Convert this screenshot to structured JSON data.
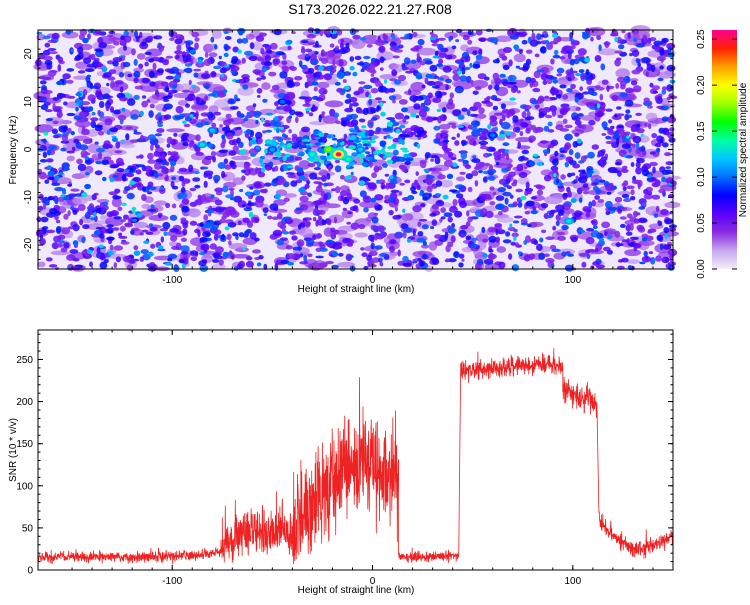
{
  "title": "S173.2026.022.21.27.R08",
  "chart_data": [
    {
      "type": "heatmap",
      "title": "",
      "xlabel": "Height of straight line (km)",
      "ylabel": "Frequency (Hz)",
      "xlim": [
        -167,
        150
      ],
      "ylim": [
        -25,
        25
      ],
      "x_ticks": [
        "-100",
        "0",
        "100"
      ],
      "y_ticks": [
        "-20",
        "-10",
        "0",
        "10",
        "20"
      ],
      "colorbar": {
        "label": "Normalized spectral amplitude",
        "range": [
          0,
          0.26
        ],
        "ticks": [
          "0.00",
          "0.05",
          "0.10",
          "0.15",
          "0.20",
          "0.25"
        ],
        "colors": [
          "#f4eefc",
          "#c8a8f0",
          "#8a2be2",
          "#5a00ff",
          "#0000ff",
          "#0070ff",
          "#00c8ff",
          "#00ffa0",
          "#00ff00",
          "#a0ff00",
          "#ffff00",
          "#ffa000",
          "#ff2000",
          "#ff0090"
        ]
      },
      "peak": {
        "x": -17,
        "y": -1,
        "value": 0.26
      },
      "features": [
        {
          "x": -30,
          "y": -1,
          "value": 0.14
        },
        {
          "x": -22,
          "y": 0,
          "value": 0.18
        },
        {
          "x": -12,
          "y": -2,
          "value": 0.14
        },
        {
          "x": -6,
          "y": 0,
          "value": 0.12
        },
        {
          "x": -85,
          "y": 1,
          "value": 0.13
        },
        {
          "x": -80,
          "y": 4,
          "value": 0.12
        },
        {
          "x": -50,
          "y": 0,
          "value": 0.11
        },
        {
          "x": 98,
          "y": -15,
          "value": 0.13
        },
        {
          "x": -45,
          "y": 10,
          "value": 0.1
        },
        {
          "x": 60,
          "y": 3,
          "value": 0.1
        }
      ]
    },
    {
      "type": "line",
      "title": "",
      "xlabel": "Height of straight line (km)",
      "ylabel": "SNR (10 * v/v)",
      "xlim": [
        -167,
        150
      ],
      "ylim": [
        0,
        285
      ],
      "x_ticks": [
        "-100",
        "0",
        "100"
      ],
      "y_ticks": [
        "0",
        "50",
        "100",
        "150",
        "200",
        "250"
      ],
      "series": [
        {
          "name": "SNR",
          "color": "#ee2222",
          "segments": [
            {
              "x": [
                -167,
                -120,
                -100,
                -85,
                -75
              ],
              "y": [
                15,
                15,
                16,
                18,
                22
              ],
              "noise": 5
            },
            {
              "x": [
                -75,
                -68,
                -60,
                -50,
                -40
              ],
              "y": [
                28,
                40,
                45,
                45,
                42
              ],
              "noise": 22
            },
            {
              "x": [
                -40,
                -32,
                -22,
                -14,
                -5,
                5,
                13
              ],
              "y": [
                45,
                70,
                95,
                115,
                125,
                120,
                110
              ],
              "noise": 45
            },
            {
              "x": [
                13,
                18,
                30,
                43
              ],
              "y": [
                18,
                15,
                16,
                17
              ],
              "noise": 5
            },
            {
              "x": [
                44,
                55,
                70,
                85,
                95
              ],
              "y": [
                235,
                238,
                242,
                245,
                240
              ],
              "noise": 9
            },
            {
              "x": [
                95,
                103,
                112
              ],
              "y": [
                215,
                205,
                198
              ],
              "noise": 12
            },
            {
              "x": [
                113,
                118,
                124,
                130,
                140,
                150
              ],
              "y": [
                60,
                45,
                32,
                25,
                28,
                40
              ],
              "noise": 8
            }
          ]
        }
      ]
    }
  ]
}
